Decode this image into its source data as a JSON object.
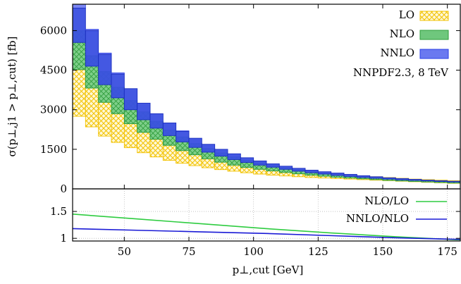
{
  "chart_data": {
    "type": "bar",
    "annotation": "NNPDF2.3, 8 TeV",
    "xlabel": "p⊥,cut [GeV]",
    "ylabel_main": "σ(p⊥,j1 > p⊥,cut) [fb]",
    "xlim": [
      30,
      180
    ],
    "xticks": [
      "50",
      "75",
      "100",
      "125",
      "150",
      "175"
    ],
    "xtick_values": [
      50,
      75,
      100,
      125,
      150,
      175
    ],
    "bin_edges": [
      30,
      35,
      40,
      45,
      50,
      55,
      60,
      65,
      70,
      75,
      80,
      85,
      90,
      95,
      100,
      105,
      110,
      115,
      120,
      125,
      130,
      135,
      140,
      145,
      150,
      155,
      160,
      165,
      170,
      175,
      180
    ],
    "main_panel": {
      "ylim": [
        0,
        7000
      ],
      "yticks": [
        "0",
        "1500",
        "3000",
        "4500",
        "6000"
      ],
      "ytick_values": [
        0,
        1500,
        3000,
        4500,
        6000
      ],
      "series": [
        {
          "name": "LO",
          "color": "#f2c200",
          "low": [
            2750,
            2350,
            2000,
            1760,
            1560,
            1370,
            1210,
            1080,
            970,
            880,
            800,
            730,
            670,
            610,
            560,
            520,
            490,
            460,
            430,
            410,
            390,
            370,
            350,
            330,
            310,
            290,
            270,
            250,
            230,
            210
          ],
          "high": [
            4520,
            3850,
            3300,
            2900,
            2530,
            2250,
            2010,
            1790,
            1600,
            1450,
            1300,
            1180,
            1070,
            980,
            900,
            820,
            760,
            700,
            650,
            610,
            570,
            530,
            490,
            460,
            430,
            400,
            370,
            350,
            330,
            310
          ]
        },
        {
          "name": "NLO",
          "color": "#2e9c3a",
          "low": [
            4520,
            3820,
            3280,
            2850,
            2470,
            2140,
            1880,
            1650,
            1450,
            1290,
            1140,
            1010,
            900,
            810,
            740,
            680,
            620,
            570,
            520,
            480,
            440,
            410,
            380,
            350,
            320,
            300,
            280,
            260,
            240,
            220
          ],
          "high": [
            6000,
            5050,
            4450,
            3850,
            3350,
            2920,
            2560,
            2230,
            1970,
            1720,
            1530,
            1360,
            1210,
            1090,
            980,
            880,
            800,
            730,
            660,
            600,
            550,
            500,
            460,
            420,
            390,
            360,
            340,
            310,
            290,
            270
          ]
        },
        {
          "name": "NNLO",
          "color": "#2a3ee6",
          "low": [
            5550,
            4650,
            3950,
            3450,
            3000,
            2620,
            2300,
            2020,
            1780,
            1570,
            1390,
            1240,
            1110,
            1000,
            900,
            820,
            740,
            670,
            610,
            560,
            510,
            470,
            430,
            400,
            370,
            340,
            320,
            300,
            280,
            260
          ],
          "high": [
            6850,
            6000,
            5100,
            4350,
            3800,
            3250,
            2850,
            2500,
            2180,
            1920,
            1690,
            1500,
            1330,
            1180,
            1060,
            950,
            860,
            780,
            710,
            650,
            600,
            550,
            500,
            460,
            420,
            390,
            360,
            330,
            310,
            290
          ],
          "top": [
            7000,
            6050,
            5150,
            4400,
            3800,
            3250,
            2850,
            2500,
            2200,
            1920,
            1690,
            1500,
            1330,
            1180,
            1060,
            950,
            860,
            780,
            710,
            650,
            600,
            550,
            500,
            460,
            420,
            390,
            360,
            330,
            310,
            290
          ]
        }
      ]
    },
    "ratio_panel": {
      "ylim": [
        0.95,
        1.92
      ],
      "yticks": [
        "1",
        "1.5"
      ],
      "ytick_values": [
        1,
        1.5
      ],
      "series": [
        {
          "name": "NLO/LO",
          "color": "#2ecc40",
          "x": [
            30,
            55,
            80,
            105,
            130,
            155,
            180
          ],
          "values": [
            1.45,
            1.36,
            1.27,
            1.18,
            1.1,
            1.03,
            0.97
          ]
        },
        {
          "name": "NNLO/NLO",
          "color": "#1a1ad6",
          "x": [
            30,
            55,
            80,
            105,
            130,
            155,
            180
          ],
          "values": [
            1.18,
            1.15,
            1.12,
            1.09,
            1.05,
            1.01,
            0.98
          ]
        }
      ]
    },
    "legend_main": [
      "LO",
      "NLO",
      "NNLO"
    ],
    "legend_ratio": [
      "NLO/LO",
      "NNLO/NLO"
    ],
    "legend_placement": "top-right",
    "grid_ratio": true
  }
}
